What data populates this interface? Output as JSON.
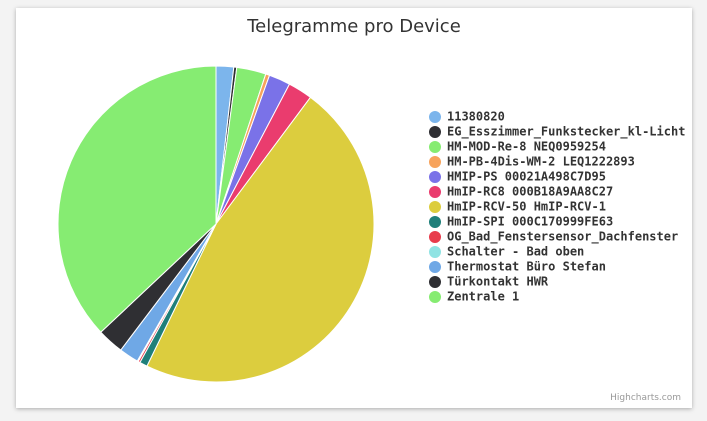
{
  "chart_data": {
    "type": "pie",
    "title": "Telegramme pro Device",
    "categories": [
      "11380820",
      "EG_Esszimmer_Funkstecker_kl-Licht",
      "HM-MOD-Re-8 NEQ0959254",
      "HM-PB-4Dis-WM-2 LEQ1222893",
      "HMIP-PS 00021A498C7D95",
      "HmIP-RC8 000B18A9AA8C27",
      "HmIP-RCV-50 HmIP-RCV-1",
      "HmIP-SPI 000C170999FE63",
      "OG_Bad_Fenstersensor_Dachfenster",
      "Schalter - Bad oben",
      "Thermostat Büro Stefan",
      "Türkontakt HWR",
      "Zentrale 1"
    ],
    "values": [
      1.8,
      0.3,
      3,
      0.4,
      2.2,
      2.5,
      47,
      0.8,
      0.2,
      0.1,
      2,
      2.7,
      37
    ],
    "colors": [
      "#7cb5ec",
      "#2f2f33",
      "#86ec72",
      "#f7a35c",
      "#7a72e8",
      "#ea3c6e",
      "#dccd3e",
      "#1f7f7a",
      "#e83c4c",
      "#8fe3e3",
      "#6fa8e6",
      "#2f2f33",
      "#86ec72"
    ],
    "credits": "Highcharts.com"
  }
}
